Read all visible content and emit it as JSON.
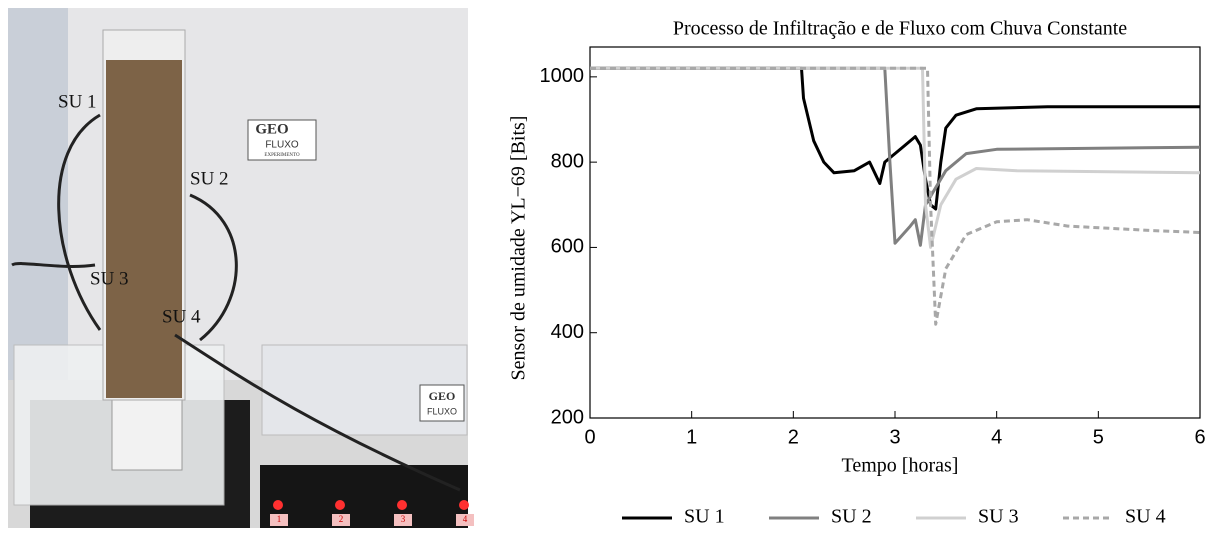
{
  "photo": {
    "sensor_labels": [
      "SU 1",
      "SU 2",
      "SU 3",
      "SU 4"
    ],
    "logo": {
      "mark": "GEO",
      "name": "FLUXO",
      "sub": "EXPERIMENTO"
    },
    "logo2": {
      "mark": "GEO",
      "name": "FLUXO"
    },
    "board_labels": [
      "1",
      "2",
      "3",
      "4"
    ]
  },
  "chart_data": {
    "type": "line",
    "title": "Processo de Infiltração e de Fluxo com Chuva Constante",
    "x_label": "Tempo [horas]",
    "y_label": "Sensor de umidade  YL−69 [Bits]",
    "xlim": [
      0,
      6
    ],
    "xticks": [
      0,
      1,
      2,
      3,
      4,
      5,
      6
    ],
    "ylim": [
      200,
      1070
    ],
    "yticks": [
      200,
      400,
      600,
      800,
      1000
    ],
    "legend": "bottom",
    "series": [
      {
        "name": "SU 1",
        "color": "#000000",
        "dash": false,
        "x": [
          0,
          2.08,
          2.1,
          2.2,
          2.3,
          2.4,
          2.6,
          2.75,
          2.85,
          2.9,
          3.0,
          3.1,
          3.2,
          3.25,
          3.3,
          3.35,
          3.4,
          3.45,
          3.5,
          3.6,
          3.8,
          4.5,
          6
        ],
        "values": [
          1020,
          1020,
          950,
          850,
          800,
          775,
          780,
          800,
          750,
          800,
          820,
          840,
          860,
          840,
          760,
          700,
          690,
          800,
          880,
          910,
          925,
          930,
          930
        ]
      },
      {
        "name": "SU 2",
        "color": "#808080",
        "dash": false,
        "x": [
          0,
          2.9,
          2.95,
          3.0,
          3.15,
          3.2,
          3.25,
          3.3,
          3.5,
          3.7,
          4.0,
          6
        ],
        "values": [
          1020,
          1020,
          800,
          610,
          650,
          665,
          605,
          700,
          780,
          820,
          830,
          835
        ]
      },
      {
        "name": "SU 3",
        "color": "#d0d0d0",
        "dash": false,
        "x": [
          0,
          3.27,
          3.3,
          3.35,
          3.45,
          3.6,
          3.8,
          4.2,
          6
        ],
        "values": [
          1020,
          1020,
          700,
          600,
          700,
          760,
          785,
          780,
          775
        ]
      },
      {
        "name": "SU 4",
        "color": "#a8a8a8",
        "dash": true,
        "x": [
          0,
          3.32,
          3.35,
          3.4,
          3.5,
          3.7,
          4.0,
          4.3,
          4.7,
          5.5,
          6
        ],
        "values": [
          1020,
          1020,
          700,
          420,
          550,
          630,
          660,
          665,
          650,
          640,
          635
        ]
      }
    ]
  }
}
